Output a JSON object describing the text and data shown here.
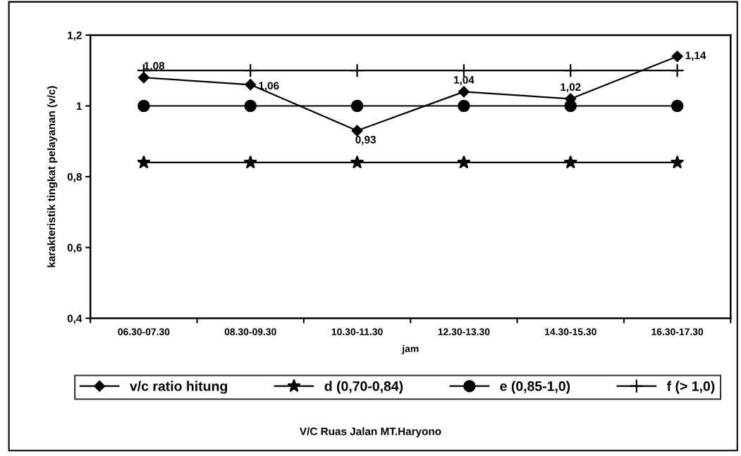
{
  "chart_data": {
    "type": "line",
    "xlabel": "jam",
    "ylabel": "karakteristik tingkat pelayanan (v/c)",
    "annotations": [
      "V/C Ruas Jalan MT.Haryono"
    ],
    "categories": [
      "06.30-07.30",
      "08.30-09.30",
      "10.30-11.30",
      "12.30-13.30",
      "14.30-15.30",
      "16.30-17.30"
    ],
    "series": [
      {
        "name": "v/c ratio hitung",
        "color": "#000000",
        "marker": "diamond",
        "values": [
          1.08,
          1.06,
          0.93,
          1.04,
          1.02,
          1.14
        ],
        "value_labels": [
          "1,08",
          "1,06",
          "0,93",
          "1,04",
          "1,02",
          "1,14"
        ]
      },
      {
        "name": "d (0,70-0,84)",
        "color": "#000000",
        "marker": "star",
        "values": [
          0.84,
          0.84,
          0.84,
          0.84,
          0.84,
          0.84
        ]
      },
      {
        "name": "e (0,85-1,0)",
        "color": "#000000",
        "marker": "circle",
        "values": [
          1.0,
          1.0,
          1.0,
          1.0,
          1.0,
          1.0
        ]
      },
      {
        "name": "f (> 1,0)",
        "color": "#000000",
        "marker": "cross",
        "values": [
          1.1,
          1.1,
          1.1,
          1.1,
          1.1,
          1.1
        ]
      }
    ],
    "ylim": [
      0.4,
      1.2
    ],
    "yticks": [
      {
        "value": 0.4,
        "label": "0,4"
      },
      {
        "value": 0.6,
        "label": "0,6"
      },
      {
        "value": 0.8,
        "label": "0,8"
      },
      1,
      {
        "value": 1.2,
        "label": "1,2"
      }
    ],
    "grid": false,
    "legend": "bottom",
    "line_style": "solid"
  }
}
